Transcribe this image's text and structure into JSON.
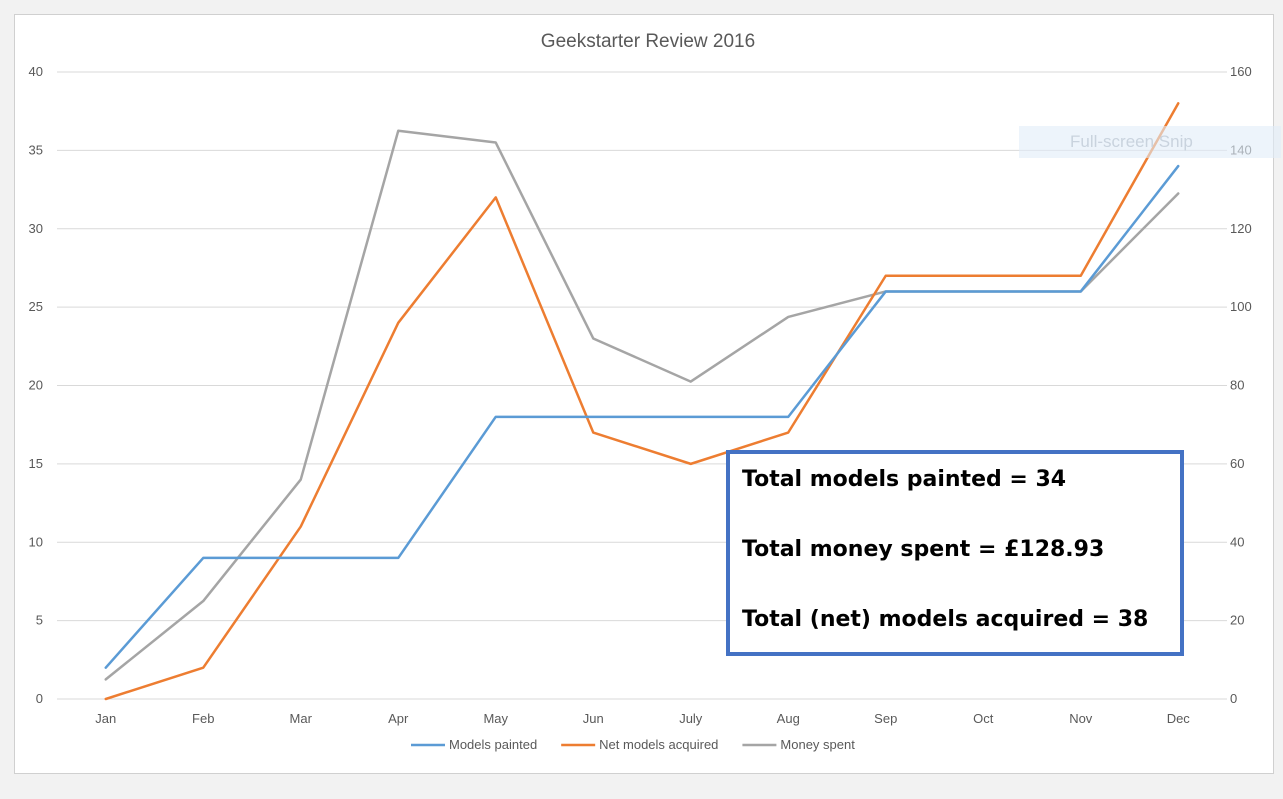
{
  "chart_data": {
    "type": "line",
    "title": "Geekstarter Review 2016",
    "categories": [
      "Jan",
      "Feb",
      "Mar",
      "Apr",
      "May",
      "Jun",
      "July",
      "Aug",
      "Sep",
      "Oct",
      "Nov",
      "Dec"
    ],
    "y_left": {
      "min": 0,
      "max": 40,
      "ticks": [
        0,
        5,
        10,
        15,
        20,
        25,
        30,
        35,
        40
      ]
    },
    "y_right": {
      "min": 0,
      "max": 160,
      "ticks": [
        0,
        20,
        40,
        60,
        80,
        100,
        120,
        140,
        160
      ]
    },
    "grid": true,
    "legend_position": "bottom",
    "series": [
      {
        "name": "Models painted",
        "axis": "left",
        "color": "#5b9bd5",
        "values": [
          2,
          9,
          9,
          9,
          18,
          18,
          18,
          18,
          26,
          26,
          26,
          34
        ]
      },
      {
        "name": "Net models acquired",
        "axis": "left",
        "color": "#ed7d31",
        "values": [
          0,
          2,
          11,
          24,
          32,
          17,
          15,
          17,
          27,
          27,
          27,
          38
        ]
      },
      {
        "name": "Money spent",
        "axis": "right",
        "color": "#a5a5a5",
        "values": [
          5,
          25,
          56,
          145,
          142,
          92,
          81,
          97.5,
          104,
          104,
          104,
          129
        ]
      }
    ]
  },
  "annotation": {
    "lines": [
      "Total models painted = 34",
      "Total money spent = £128.93",
      "Total (net) models acquired = 38"
    ]
  },
  "overlay": {
    "banner_text": "Full-screen Snip"
  }
}
